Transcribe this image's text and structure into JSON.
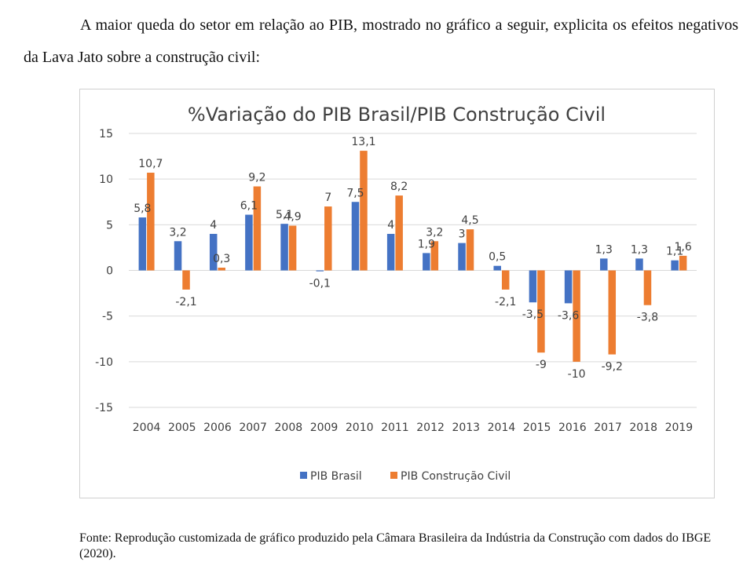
{
  "intro_text": "A maior queda do setor em relação ao PIB, mostrado no gráfico a seguir, explicita os efeitos negativos da Lava Jato sobre a construção civil:",
  "source_text": "Fonte: Reprodução customizada de gráfico produzido pela Câmara Brasileira da Indústria da Construção com dados do IBGE (2020).",
  "colors": {
    "pib_brasil": "#4472C4",
    "pib_construcao": "#ED7D31",
    "grid": "#d9d9d9",
    "text": "#404040"
  },
  "chart_data": {
    "type": "bar",
    "title": "%Variação do PIB Brasil/PIB Construção Civil",
    "xlabel": "",
    "ylabel": "",
    "ylim": [
      -15,
      15
    ],
    "yticks": [
      15,
      10,
      5,
      0,
      -5,
      -10,
      -15
    ],
    "grid": true,
    "legend_position": "bottom",
    "categories": [
      "2004",
      "2005",
      "2006",
      "2007",
      "2008",
      "2009",
      "2010",
      "2011",
      "2012",
      "2013",
      "2014",
      "2015",
      "2016",
      "2017",
      "2018",
      "2019"
    ],
    "series": [
      {
        "name": "PIB Brasil",
        "values": [
          5.8,
          3.2,
          4,
          6.1,
          5.1,
          -0.1,
          7.5,
          4,
          1.9,
          3,
          0.5,
          -3.5,
          -3.6,
          1.3,
          1.3,
          1.1
        ],
        "labels": [
          "5,8",
          "3,2",
          "4",
          "6,1",
          "5,1",
          "-0,1",
          "7,5",
          "4",
          "1,9",
          "3",
          "0,5",
          "-3,5",
          "-3,6",
          "1,3",
          "1,3",
          "1,1"
        ]
      },
      {
        "name": "PIB Construção Civil",
        "values": [
          10.7,
          -2.1,
          0.3,
          9.2,
          4.9,
          7,
          13.1,
          8.2,
          3.2,
          4.5,
          -2.1,
          -9,
          -10,
          -9.2,
          -3.8,
          1.6
        ],
        "labels": [
          "10,7",
          "-2,1",
          "0,3",
          "9,2",
          "4,9",
          "7",
          "13,1",
          "8,2",
          "3,2",
          "4,5",
          "-2,1",
          "-9",
          "-10",
          "-9,2",
          "-3,8",
          "1,6"
        ]
      }
    ]
  }
}
